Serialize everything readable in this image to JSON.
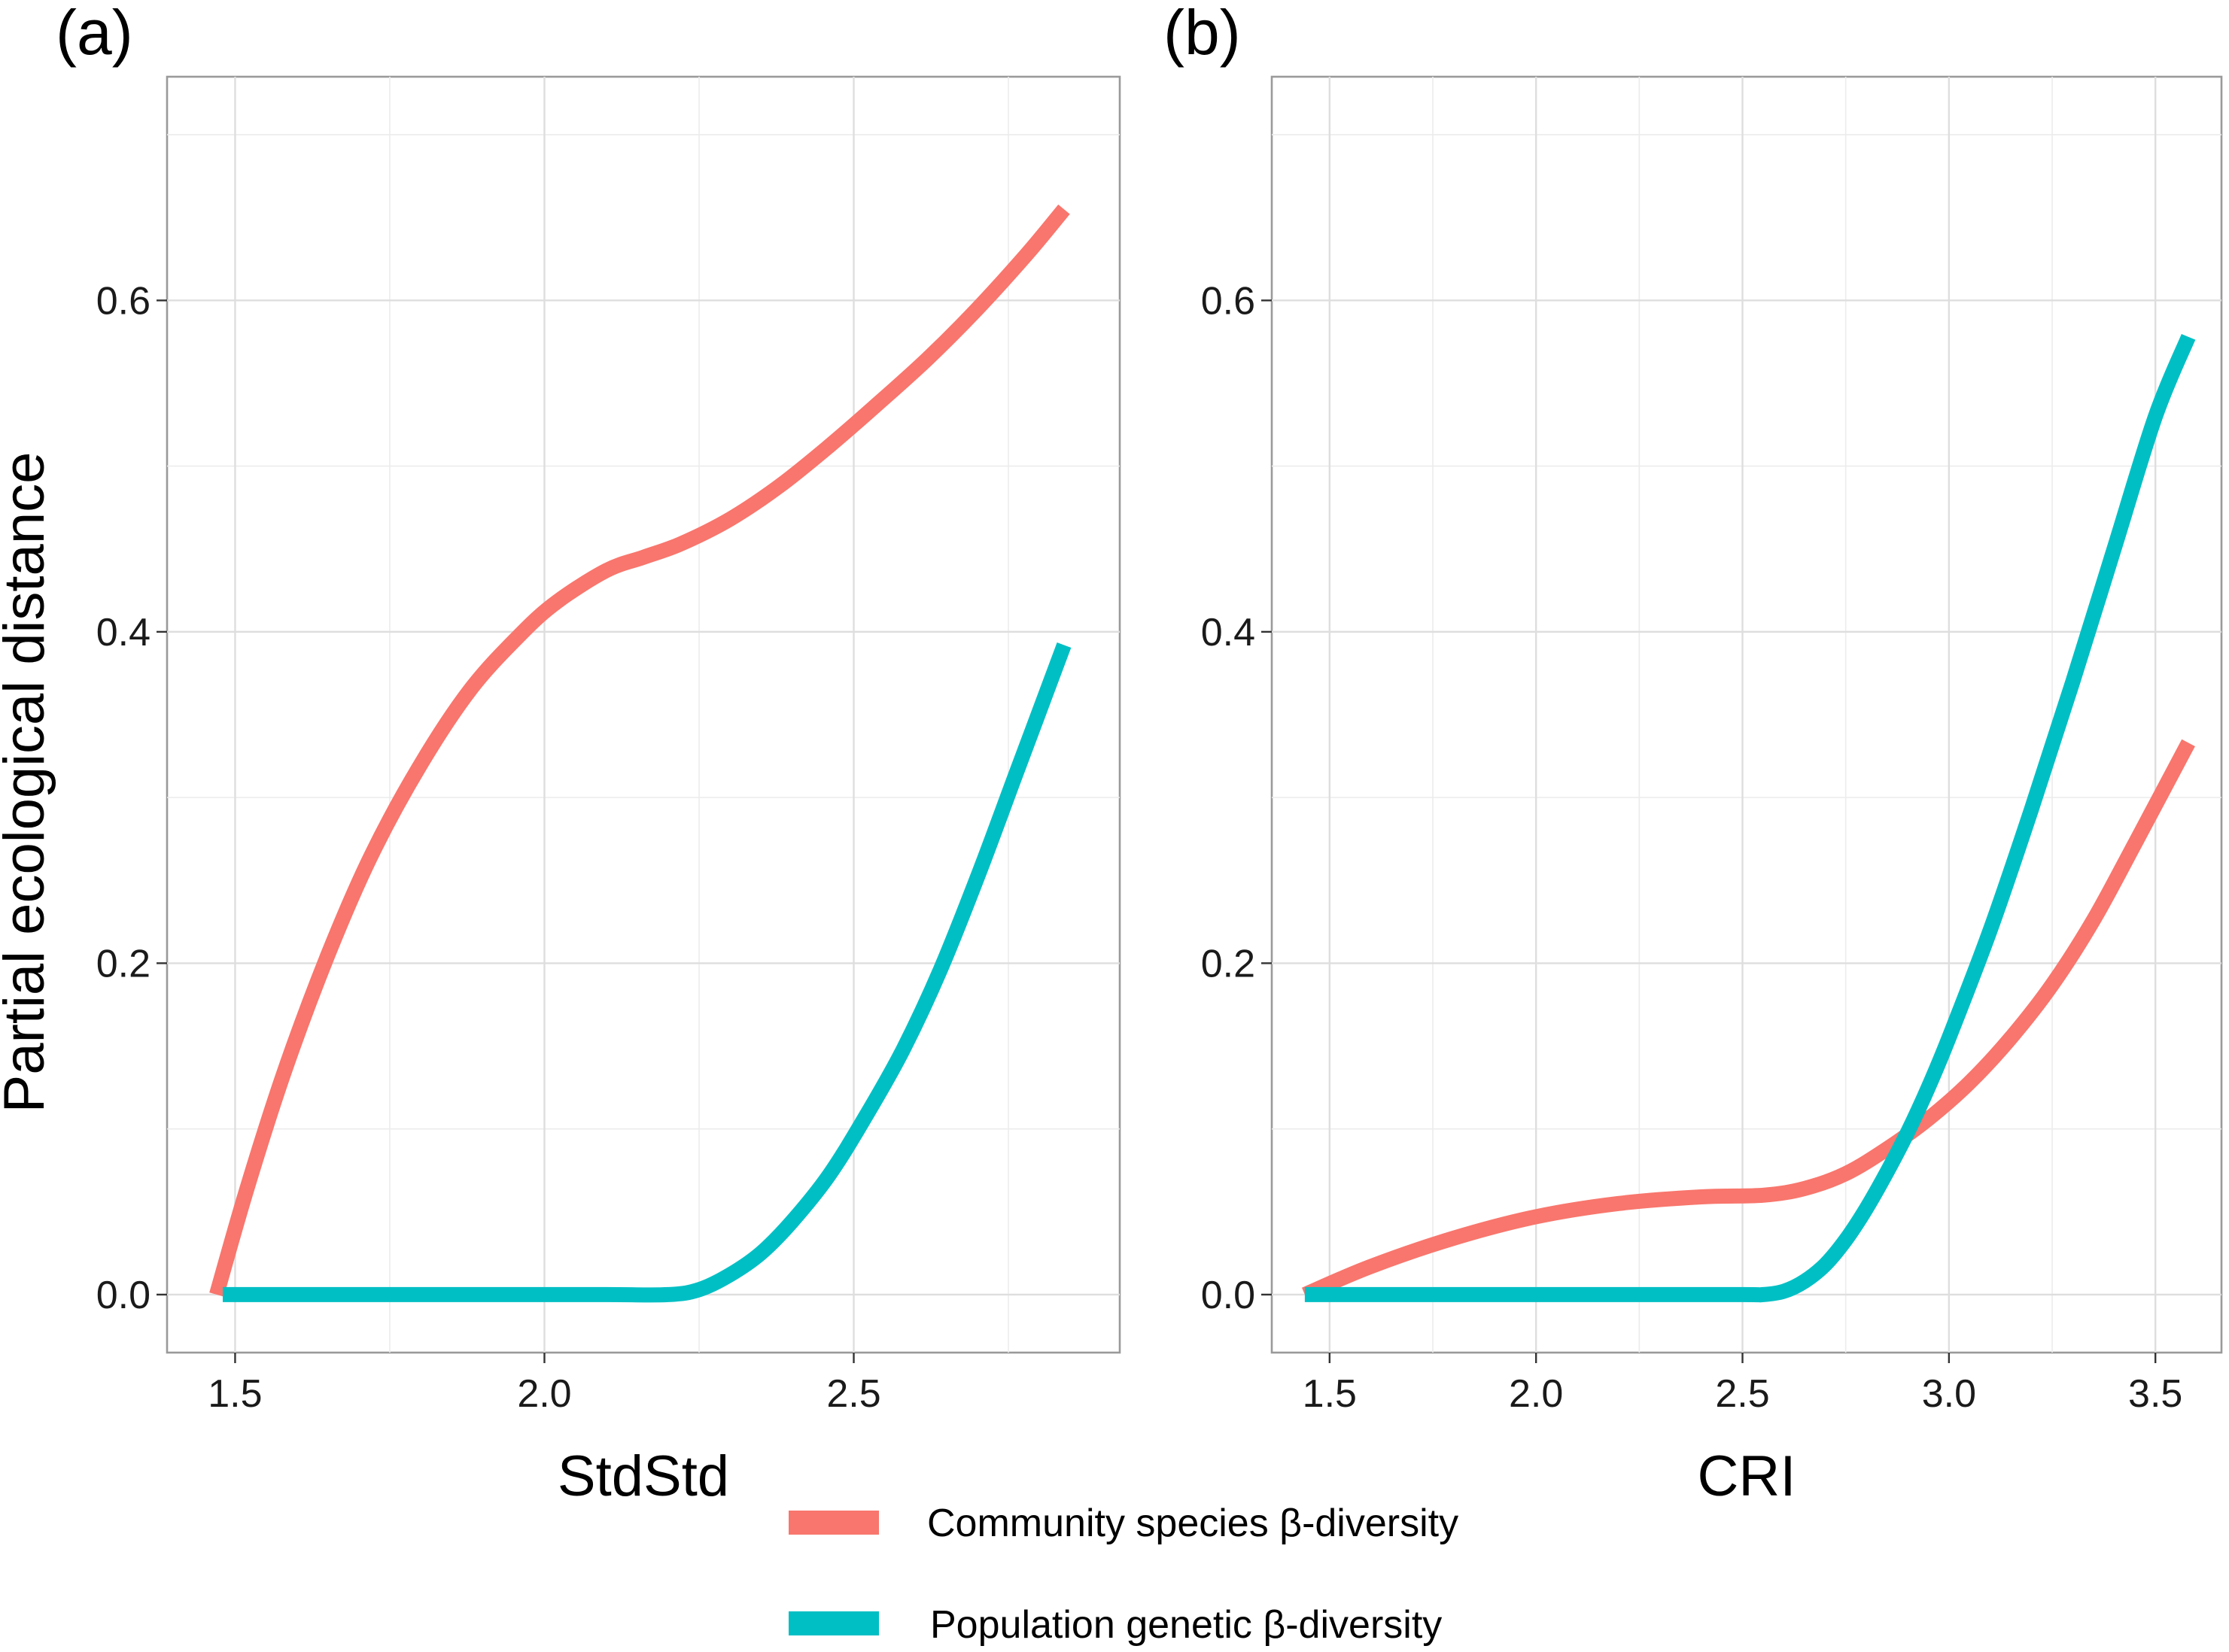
{
  "y_axis_title": "Partial ecological distance",
  "legend": [
    {
      "label": "Community species β-diversity",
      "color": "#F8766D"
    },
    {
      "label": "Population genetic β-diversity",
      "color": "#00BFC4"
    }
  ],
  "chart_data": [
    {
      "type": "line",
      "panel_label": "(a)",
      "xlabel": "StdStd",
      "ylabel": "Partial ecological distance",
      "xlim": [
        1.39,
        2.93
      ],
      "ylim": [
        -0.035,
        0.735
      ],
      "x_ticks": [
        1.5,
        2.0,
        2.5
      ],
      "x_tick_labels": [
        "1.5",
        "2.0",
        "2.5"
      ],
      "y_ticks": [
        0.0,
        0.2,
        0.4,
        0.6
      ],
      "y_tick_labels": [
        "0.0",
        "0.2",
        "0.4",
        "0.6"
      ],
      "grid": true,
      "series": [
        {
          "name": "Community species β-diversity",
          "color": "#F8766D",
          "x": [
            1.47,
            1.52,
            1.58,
            1.65,
            1.72,
            1.8,
            1.88,
            1.96,
            2.02,
            2.1,
            2.16,
            2.22,
            2.3,
            2.38,
            2.46,
            2.54,
            2.62,
            2.7,
            2.78,
            2.84
          ],
          "y": [
            0.0,
            0.065,
            0.135,
            0.205,
            0.265,
            0.32,
            0.365,
            0.398,
            0.418,
            0.437,
            0.445,
            0.453,
            0.468,
            0.488,
            0.512,
            0.538,
            0.565,
            0.595,
            0.628,
            0.655
          ]
        },
        {
          "name": "Population genetic β-diversity",
          "color": "#00BFC4",
          "x": [
            1.48,
            1.7,
            1.9,
            2.1,
            2.2,
            2.25,
            2.3,
            2.35,
            2.4,
            2.46,
            2.52,
            2.58,
            2.64,
            2.7,
            2.76,
            2.84
          ],
          "y": [
            0.0,
            0.0,
            0.0,
            0.0,
            0.0,
            0.003,
            0.012,
            0.025,
            0.044,
            0.072,
            0.108,
            0.148,
            0.196,
            0.252,
            0.312,
            0.392
          ]
        }
      ]
    },
    {
      "type": "line",
      "panel_label": "(b)",
      "xlabel": "CRI",
      "ylabel": "",
      "xlim": [
        1.36,
        3.66
      ],
      "ylim": [
        -0.035,
        0.735
      ],
      "x_ticks": [
        1.5,
        2.0,
        2.5,
        3.0,
        3.5
      ],
      "x_tick_labels": [
        "1.5",
        "2.0",
        "2.5",
        "3.0",
        "3.5"
      ],
      "y_ticks": [
        0.0,
        0.2,
        0.4,
        0.6
      ],
      "y_tick_labels": [
        "0.0",
        "0.2",
        "0.4",
        "0.6"
      ],
      "grid": true,
      "series": [
        {
          "name": "Community species β-diversity",
          "color": "#F8766D",
          "x": [
            1.44,
            1.6,
            1.8,
            2.0,
            2.2,
            2.4,
            2.55,
            2.65,
            2.75,
            2.85,
            2.95,
            3.05,
            3.15,
            3.25,
            3.35,
            3.45,
            3.58
          ],
          "y": [
            0.0,
            0.017,
            0.034,
            0.047,
            0.055,
            0.059,
            0.06,
            0.064,
            0.073,
            0.088,
            0.106,
            0.128,
            0.155,
            0.187,
            0.226,
            0.272,
            0.333
          ]
        },
        {
          "name": "Population genetic β-diversity",
          "color": "#00BFC4",
          "x": [
            1.44,
            1.8,
            2.2,
            2.5,
            2.55,
            2.6,
            2.65,
            2.7,
            2.75,
            2.8,
            2.85,
            2.9,
            2.95,
            3.0,
            3.1,
            3.2,
            3.3,
            3.4,
            3.5,
            3.58
          ],
          "y": [
            0.0,
            0.0,
            0.0,
            0.0,
            0.0,
            0.002,
            0.008,
            0.018,
            0.033,
            0.052,
            0.074,
            0.098,
            0.125,
            0.155,
            0.22,
            0.293,
            0.37,
            0.45,
            0.53,
            0.578
          ]
        }
      ]
    }
  ]
}
